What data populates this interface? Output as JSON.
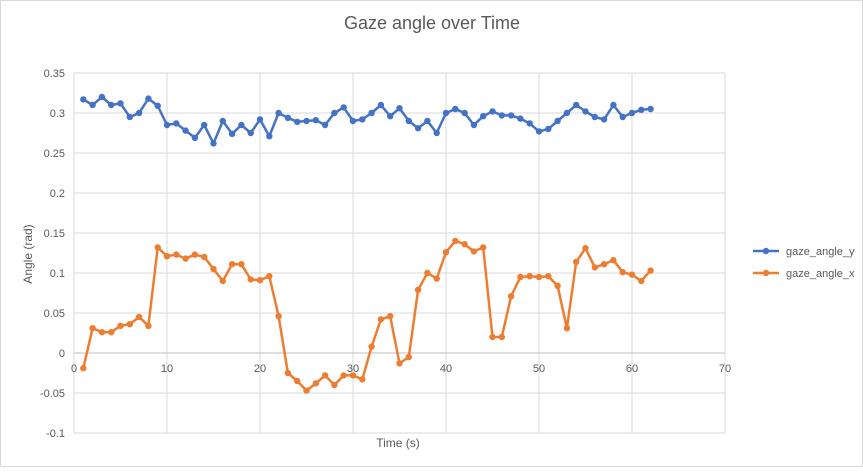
{
  "chart_data": {
    "type": "line",
    "title": "Gaze angle over Time",
    "xlabel": "Time (s)",
    "ylabel": "Angle (rad)",
    "xlim": [
      0,
      70
    ],
    "ylim": [
      -0.1,
      0.35
    ],
    "xticks": [
      "0",
      "10",
      "20",
      "30",
      "40",
      "50",
      "60",
      "70"
    ],
    "yticks": [
      "-0.1",
      "-0.05",
      "0",
      "0.05",
      "0.1",
      "0.15",
      "0.2",
      "0.25",
      "0.3",
      "0.35"
    ],
    "grid": true,
    "legend_position": "right",
    "x": [
      1,
      2,
      3,
      4,
      5,
      6,
      7,
      8,
      9,
      10,
      11,
      12,
      13,
      14,
      15,
      16,
      17,
      18,
      19,
      20,
      21,
      22,
      23,
      24,
      25,
      26,
      27,
      28,
      29,
      30,
      31,
      32,
      33,
      34,
      35,
      36,
      37,
      38,
      39,
      40,
      41,
      42,
      43,
      44,
      45,
      46,
      47,
      48,
      49,
      50,
      51,
      52,
      53,
      54,
      55,
      56,
      57,
      58,
      59,
      60,
      61,
      62
    ],
    "series": [
      {
        "name": "gaze_angle_y",
        "color": "#4472c4",
        "values": [
          0.317,
          0.31,
          0.32,
          0.31,
          0.312,
          0.295,
          0.3,
          0.318,
          0.309,
          0.285,
          0.287,
          0.278,
          0.269,
          0.285,
          0.262,
          0.29,
          0.274,
          0.285,
          0.275,
          0.292,
          0.271,
          0.3,
          0.294,
          0.289,
          0.29,
          0.291,
          0.285,
          0.3,
          0.307,
          0.29,
          0.292,
          0.3,
          0.31,
          0.296,
          0.306,
          0.29,
          0.281,
          0.29,
          0.275,
          0.3,
          0.305,
          0.3,
          0.285,
          0.296,
          0.302,
          0.297,
          0.297,
          0.293,
          0.287,
          0.277,
          0.28,
          0.29,
          0.3,
          0.31,
          0.302,
          0.295,
          0.292,
          0.31,
          0.295,
          0.3,
          0.304,
          0.305
        ]
      },
      {
        "name": "gaze_angle_x",
        "color": "#ed7d31",
        "values": [
          -0.019,
          0.031,
          0.026,
          0.026,
          0.034,
          0.036,
          0.045,
          0.034,
          0.132,
          0.121,
          0.123,
          0.118,
          0.123,
          0.12,
          0.105,
          0.09,
          0.111,
          0.111,
          0.092,
          0.091,
          0.096,
          0.046,
          -0.025,
          -0.035,
          -0.047,
          -0.038,
          -0.028,
          -0.04,
          -0.028,
          -0.028,
          -0.033,
          0.008,
          0.042,
          0.046,
          -0.013,
          -0.005,
          0.079,
          0.1,
          0.093,
          0.126,
          0.14,
          0.136,
          0.127,
          0.132,
          0.02,
          0.02,
          0.071,
          0.095,
          0.096,
          0.095,
          0.096,
          0.084,
          0.031,
          0.114,
          0.131,
          0.107,
          0.111,
          0.116,
          0.101,
          0.098,
          0.09,
          0.103
        ]
      }
    ]
  }
}
